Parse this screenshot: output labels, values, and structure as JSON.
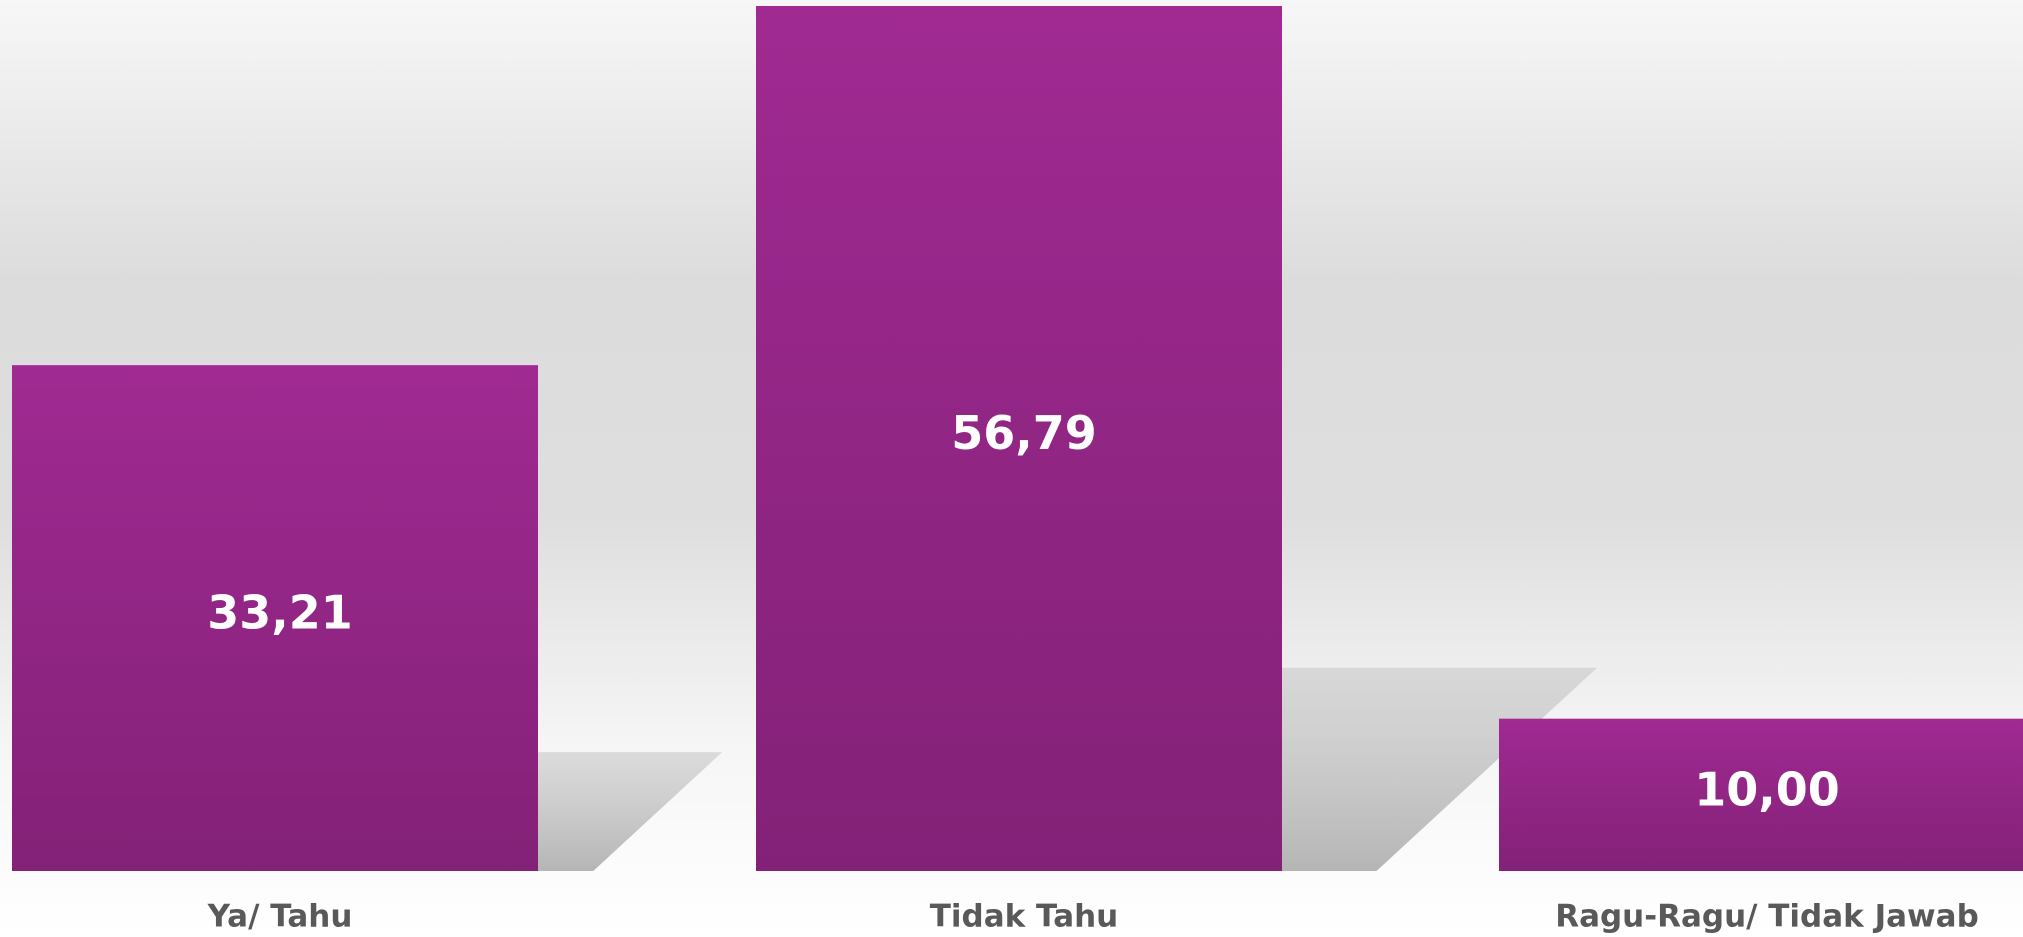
{
  "chart_data": {
    "type": "bar",
    "categories": [
      "Ya/ Tahu",
      "Tidak Tahu",
      "Ragu-Ragu/ Tidak Jawab"
    ],
    "values": [
      33.21,
      56.79,
      10.0
    ],
    "value_labels": [
      "33,21",
      "56,79",
      "10,00"
    ],
    "color": "#9b2990"
  }
}
